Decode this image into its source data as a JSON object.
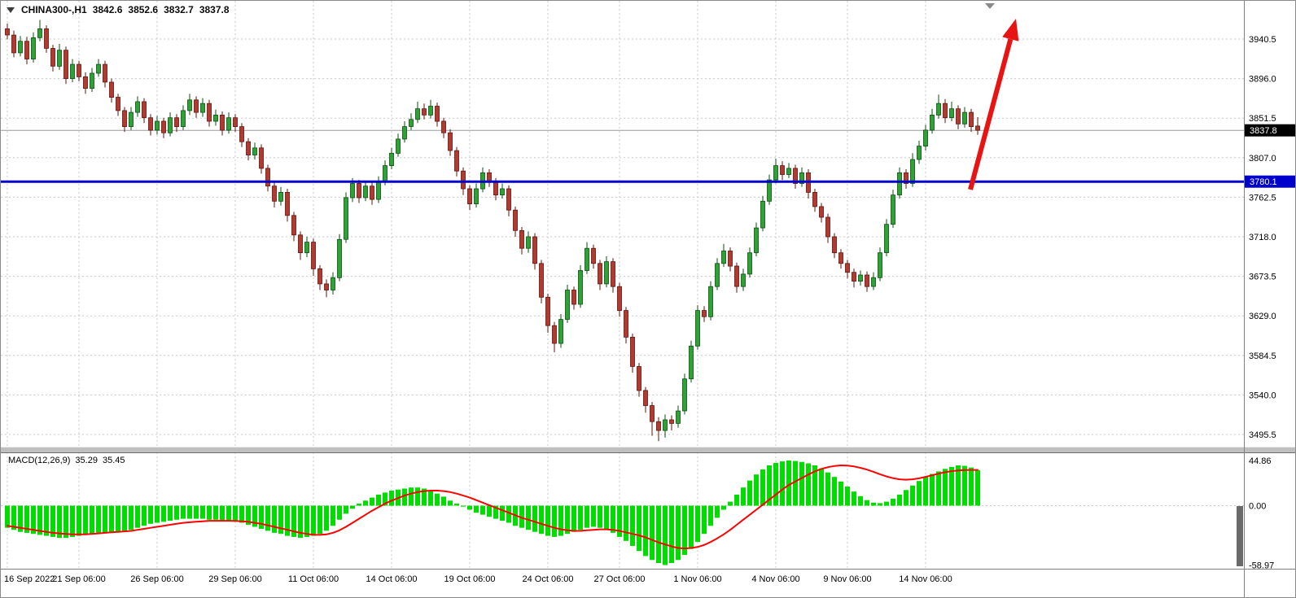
{
  "header": {
    "symbol_period": "CHINA300-,H1",
    "open": "3842.6",
    "high": "3852.6",
    "low": "3832.7",
    "close": "3837.8"
  },
  "colors": {
    "up_fill": "#2ca333",
    "up_border": "#0e4d15",
    "down_fill": "#b23a2f",
    "down_border": "#5d150e",
    "grid": "#c9c9c9",
    "support_line": "#0000cc",
    "current_price_line": "#9a9a9a",
    "arrow": "#e81414",
    "macd_histogram": "#00dc00",
    "macd_signal": "#ff0000",
    "tag_current_bg": "#000000",
    "tag_current_text": "#ffffff",
    "tag_support_bg": "#0000cc",
    "tag_support_text": "#ffffff",
    "axis_text": "#000000",
    "separator": "#bfbfbf"
  },
  "chart_data": [
    {
      "type": "candlestick",
      "title": "CHINA300-,H1",
      "timeframe": "H1",
      "y_ticks": [
        "3940.5",
        "3896.0",
        "3851.5",
        "3807.0",
        "3762.5",
        "3718.0",
        "3673.5",
        "3629.0",
        "3584.5",
        "3540.0",
        "3495.5"
      ],
      "ylim": [
        3483,
        3965
      ],
      "grid": "dashed",
      "current_price": 3837.8,
      "support_line": 3780.1,
      "annotations": {
        "arrow_note": "red up-trend arrow drawn from the 3780.1 support line pointing up-right"
      },
      "x_tick_labels": [
        "16 Sep 2022",
        "21 Sep 06:00",
        "26 Sep 06:00",
        "29 Sep 06:00",
        "11 Oct 06:00",
        "14 Oct 06:00",
        "19 Oct 06:00",
        "24 Oct 06:00",
        "27 Oct 06:00",
        "1 Nov 06:00",
        "4 Nov 06:00",
        "9 Nov 06:00",
        "14 Nov 06:00"
      ],
      "x_tick_indices": [
        0,
        11,
        23,
        35,
        47,
        59,
        71,
        83,
        94,
        106,
        118,
        129,
        141
      ],
      "candles": [
        [
          3952,
          3958,
          3940,
          3945
        ],
        [
          3945,
          3950,
          3920,
          3925
        ],
        [
          3925,
          3944,
          3921,
          3938
        ],
        [
          3938,
          3943,
          3912,
          3918
        ],
        [
          3918,
          3948,
          3914,
          3942
        ],
        [
          3942,
          3962,
          3938,
          3952
        ],
        [
          3952,
          3956,
          3925,
          3930
        ],
        [
          3930,
          3934,
          3904,
          3910
        ],
        [
          3910,
          3935,
          3906,
          3928
        ],
        [
          3928,
          3932,
          3890,
          3896
        ],
        [
          3896,
          3918,
          3892,
          3912
        ],
        [
          3912,
          3916,
          3893,
          3898
        ],
        [
          3898,
          3903,
          3879,
          3885
        ],
        [
          3885,
          3908,
          3881,
          3902
        ],
        [
          3902,
          3918,
          3898,
          3912
        ],
        [
          3912,
          3916,
          3886,
          3892
        ],
        [
          3892,
          3896,
          3869,
          3875
        ],
        [
          3875,
          3879,
          3854,
          3860
        ],
        [
          3860,
          3864,
          3836,
          3842
        ],
        [
          3842,
          3864,
          3838,
          3858
        ],
        [
          3858,
          3876,
          3853,
          3870
        ],
        [
          3870,
          3874,
          3846,
          3852
        ],
        [
          3852,
          3856,
          3832,
          3838
        ],
        [
          3838,
          3854,
          3833,
          3848
        ],
        [
          3848,
          3852,
          3829,
          3835
        ],
        [
          3835,
          3858,
          3831,
          3852
        ],
        [
          3852,
          3856,
          3836,
          3842
        ],
        [
          3842,
          3866,
          3838,
          3860
        ],
        [
          3860,
          3879,
          3855,
          3872
        ],
        [
          3872,
          3876,
          3852,
          3858
        ],
        [
          3858,
          3874,
          3853,
          3868
        ],
        [
          3868,
          3872,
          3842,
          3848
        ],
        [
          3848,
          3861,
          3843,
          3855
        ],
        [
          3855,
          3859,
          3832,
          3838
        ],
        [
          3838,
          3858,
          3834,
          3852
        ],
        [
          3852,
          3856,
          3836,
          3842
        ],
        [
          3842,
          3846,
          3819,
          3825
        ],
        [
          3825,
          3829,
          3804,
          3810
        ],
        [
          3810,
          3824,
          3805,
          3818
        ],
        [
          3818,
          3822,
          3789,
          3795
        ],
        [
          3795,
          3799,
          3769,
          3775
        ],
        [
          3775,
          3779,
          3751,
          3758
        ],
        [
          3758,
          3774,
          3753,
          3768
        ],
        [
          3768,
          3772,
          3735,
          3742
        ],
        [
          3742,
          3746,
          3713,
          3720
        ],
        [
          3720,
          3724,
          3692,
          3700
        ],
        [
          3700,
          3718,
          3695,
          3712
        ],
        [
          3712,
          3716,
          3674,
          3682
        ],
        [
          3682,
          3686,
          3658,
          3665
        ],
        [
          3665,
          3670,
          3650,
          3658
        ],
        [
          3658,
          3678,
          3653,
          3672
        ],
        [
          3672,
          3721,
          3668,
          3715
        ],
        [
          3715,
          3768,
          3711,
          3762
        ],
        [
          3762,
          3784,
          3757,
          3778
        ],
        [
          3778,
          3782,
          3756,
          3762
        ],
        [
          3762,
          3781,
          3758,
          3775
        ],
        [
          3775,
          3779,
          3754,
          3760
        ],
        [
          3760,
          3786,
          3756,
          3780
        ],
        [
          3780,
          3804,
          3776,
          3798
        ],
        [
          3798,
          3818,
          3794,
          3812
        ],
        [
          3812,
          3834,
          3808,
          3828
        ],
        [
          3828,
          3848,
          3824,
          3842
        ],
        [
          3842,
          3857,
          3838,
          3850
        ],
        [
          3850,
          3870,
          3846,
          3862
        ],
        [
          3862,
          3868,
          3850,
          3855
        ],
        [
          3855,
          3872,
          3851,
          3865
        ],
        [
          3865,
          3869,
          3842,
          3848
        ],
        [
          3848,
          3852,
          3829,
          3835
        ],
        [
          3835,
          3839,
          3809,
          3815
        ],
        [
          3815,
          3819,
          3786,
          3792
        ],
        [
          3792,
          3796,
          3765,
          3772
        ],
        [
          3772,
          3776,
          3748,
          3755
        ],
        [
          3755,
          3778,
          3751,
          3772
        ],
        [
          3772,
          3796,
          3768,
          3790
        ],
        [
          3790,
          3794,
          3774,
          3780
        ],
        [
          3780,
          3784,
          3759,
          3765
        ],
        [
          3765,
          3778,
          3761,
          3772
        ],
        [
          3772,
          3776,
          3741,
          3748
        ],
        [
          3748,
          3752,
          3718,
          3725
        ],
        [
          3725,
          3729,
          3698,
          3705
        ],
        [
          3705,
          3724,
          3700,
          3718
        ],
        [
          3718,
          3722,
          3681,
          3688
        ],
        [
          3688,
          3692,
          3643,
          3650
        ],
        [
          3650,
          3654,
          3610,
          3618
        ],
        [
          3618,
          3622,
          3588,
          3598
        ],
        [
          3598,
          3631,
          3593,
          3625
        ],
        [
          3625,
          3664,
          3621,
          3658
        ],
        [
          3658,
          3662,
          3636,
          3642
        ],
        [
          3642,
          3686,
          3638,
          3680
        ],
        [
          3680,
          3712,
          3676,
          3705
        ],
        [
          3705,
          3709,
          3682,
          3688
        ],
        [
          3688,
          3692,
          3658,
          3665
        ],
        [
          3665,
          3696,
          3661,
          3690
        ],
        [
          3690,
          3694,
          3655,
          3662
        ],
        [
          3662,
          3666,
          3628,
          3635
        ],
        [
          3635,
          3639,
          3598,
          3605
        ],
        [
          3605,
          3609,
          3565,
          3572
        ],
        [
          3572,
          3576,
          3538,
          3545
        ],
        [
          3545,
          3549,
          3520,
          3528
        ],
        [
          3528,
          3532,
          3494,
          3510
        ],
        [
          3510,
          3515,
          3488,
          3500
        ],
        [
          3500,
          3518,
          3492,
          3512
        ],
        [
          3512,
          3517,
          3500,
          3508
        ],
        [
          3508,
          3528,
          3503,
          3522
        ],
        [
          3522,
          3564,
          3518,
          3558
        ],
        [
          3558,
          3601,
          3554,
          3595
        ],
        [
          3595,
          3641,
          3591,
          3635
        ],
        [
          3635,
          3640,
          3622,
          3628
        ],
        [
          3628,
          3668,
          3624,
          3662
        ],
        [
          3662,
          3694,
          3658,
          3688
        ],
        [
          3688,
          3710,
          3684,
          3702
        ],
        [
          3702,
          3706,
          3679,
          3685
        ],
        [
          3685,
          3689,
          3655,
          3662
        ],
        [
          3662,
          3682,
          3657,
          3676
        ],
        [
          3676,
          3706,
          3672,
          3700
        ],
        [
          3700,
          3734,
          3696,
          3728
        ],
        [
          3728,
          3764,
          3724,
          3758
        ],
        [
          3758,
          3788,
          3754,
          3782
        ],
        [
          3782,
          3806,
          3778,
          3798
        ],
        [
          3798,
          3803,
          3782,
          3788
        ],
        [
          3788,
          3801,
          3784,
          3795
        ],
        [
          3795,
          3799,
          3772,
          3778
        ],
        [
          3778,
          3796,
          3774,
          3790
        ],
        [
          3790,
          3794,
          3761,
          3768
        ],
        [
          3768,
          3772,
          3746,
          3752
        ],
        [
          3752,
          3756,
          3734,
          3740
        ],
        [
          3740,
          3744,
          3711,
          3718
        ],
        [
          3718,
          3722,
          3694,
          3700
        ],
        [
          3700,
          3704,
          3682,
          3688
        ],
        [
          3688,
          3692,
          3671,
          3678
        ],
        [
          3678,
          3682,
          3661,
          3668
        ],
        [
          3668,
          3680,
          3663,
          3675
        ],
        [
          3675,
          3679,
          3656,
          3662
        ],
        [
          3662,
          3678,
          3658,
          3672
        ],
        [
          3672,
          3706,
          3668,
          3700
        ],
        [
          3700,
          3738,
          3696,
          3732
        ],
        [
          3732,
          3771,
          3728,
          3765
        ],
        [
          3765,
          3796,
          3761,
          3790
        ],
        [
          3790,
          3794,
          3772,
          3778
        ],
        [
          3778,
          3812,
          3774,
          3805
        ],
        [
          3805,
          3826,
          3800,
          3820
        ],
        [
          3820,
          3844,
          3815,
          3838
        ],
        [
          3838,
          3862,
          3834,
          3855
        ],
        [
          3855,
          3878,
          3851,
          3868
        ],
        [
          3868,
          3873,
          3846,
          3852
        ],
        [
          3852,
          3870,
          3848,
          3862
        ],
        [
          3862,
          3866,
          3839,
          3845
        ],
        [
          3845,
          3864,
          3841,
          3858
        ],
        [
          3858,
          3862,
          3836,
          3842
        ],
        [
          3842.6,
          3852.6,
          3832.7,
          3837.8
        ]
      ]
    },
    {
      "type": "macd",
      "label": "MACD(12,26,9)",
      "main_value": "35.29",
      "signal_value": "35.45",
      "y_ticks": [
        "44.86",
        "0.00",
        "-58.97"
      ],
      "ylim": [
        -63,
        50
      ],
      "histogram": [
        -22,
        -24,
        -26,
        -27,
        -28,
        -29,
        -30,
        -31,
        -32,
        -32,
        -31,
        -30,
        -29,
        -28,
        -27,
        -27,
        -26,
        -26,
        -25,
        -24,
        -22,
        -20,
        -18,
        -17,
        -16,
        -15,
        -14,
        -13,
        -13,
        -13,
        -13,
        -14,
        -14,
        -15,
        -15,
        -16,
        -17,
        -19,
        -21,
        -23,
        -25,
        -27,
        -28,
        -30,
        -31,
        -32,
        -31,
        -30,
        -28,
        -25,
        -20,
        -14,
        -8,
        -3,
        2,
        5,
        8,
        11,
        13,
        15,
        16,
        17,
        18,
        18,
        17,
        15,
        12,
        9,
        5,
        2,
        -1,
        -4,
        -7,
        -9,
        -11,
        -13,
        -15,
        -17,
        -20,
        -22,
        -24,
        -26,
        -28,
        -30,
        -31,
        -30,
        -28,
        -26,
        -24,
        -22,
        -21,
        -22,
        -24,
        -27,
        -31,
        -35,
        -40,
        -45,
        -50,
        -54,
        -57,
        -58.97,
        -57,
        -54,
        -49,
        -43,
        -36,
        -28,
        -20,
        -12,
        -4,
        4,
        11,
        18,
        25,
        31,
        36,
        40,
        42.5,
        44,
        44.86,
        44.4,
        43.5,
        42,
        40,
        37,
        33,
        28.5,
        24,
        19,
        14,
        9.5,
        5.5,
        3,
        2.5,
        4,
        7,
        11,
        15.5,
        20,
        24.5,
        28.5,
        31.5,
        34,
        36.5,
        38.5,
        40,
        39.5,
        37.8,
        35.29
      ],
      "signal": [
        -20,
        -21,
        -22,
        -23,
        -24,
        -25,
        -26,
        -27,
        -27.5,
        -28,
        -28.5,
        -28.5,
        -28.5,
        -28,
        -27.5,
        -27,
        -26.5,
        -26,
        -25.5,
        -25,
        -24,
        -23,
        -22,
        -21,
        -20,
        -19,
        -18,
        -17,
        -16.5,
        -16,
        -15.5,
        -15,
        -15,
        -15,
        -15,
        -15.2,
        -15.5,
        -16,
        -17,
        -18,
        -19.5,
        -21,
        -22.5,
        -24,
        -25.5,
        -27,
        -28,
        -28.8,
        -29,
        -28.5,
        -27,
        -24.5,
        -21,
        -17,
        -13,
        -9,
        -5,
        -1.5,
        2,
        5,
        7.5,
        10,
        12,
        13.5,
        14.5,
        15,
        15,
        14.5,
        13.5,
        12,
        10,
        8,
        5.5,
        3,
        0.5,
        -2,
        -4.5,
        -7,
        -9.5,
        -12,
        -14,
        -16,
        -18,
        -20,
        -22,
        -23.5,
        -24.5,
        -25,
        -25,
        -24.5,
        -24,
        -23.5,
        -23.5,
        -24,
        -25,
        -26.5,
        -28,
        -29.5,
        -31.5,
        -34,
        -36.5,
        -38.5,
        -40.5,
        -42,
        -42.5,
        -42,
        -41,
        -39,
        -36,
        -32.5,
        -28.5,
        -24,
        -19,
        -14,
        -9,
        -4,
        1,
        6,
        11,
        16,
        20.5,
        24,
        27.5,
        31,
        34,
        36.5,
        38.2,
        39.4,
        40,
        39.8,
        39,
        37.6,
        35.8,
        33.6,
        31.2,
        29,
        27.3,
        26.2,
        25.8,
        26.2,
        27.2,
        28.6,
        30.2,
        31.8,
        33.2,
        34.3,
        35,
        35.4,
        35.5,
        35.45
      ]
    }
  ]
}
